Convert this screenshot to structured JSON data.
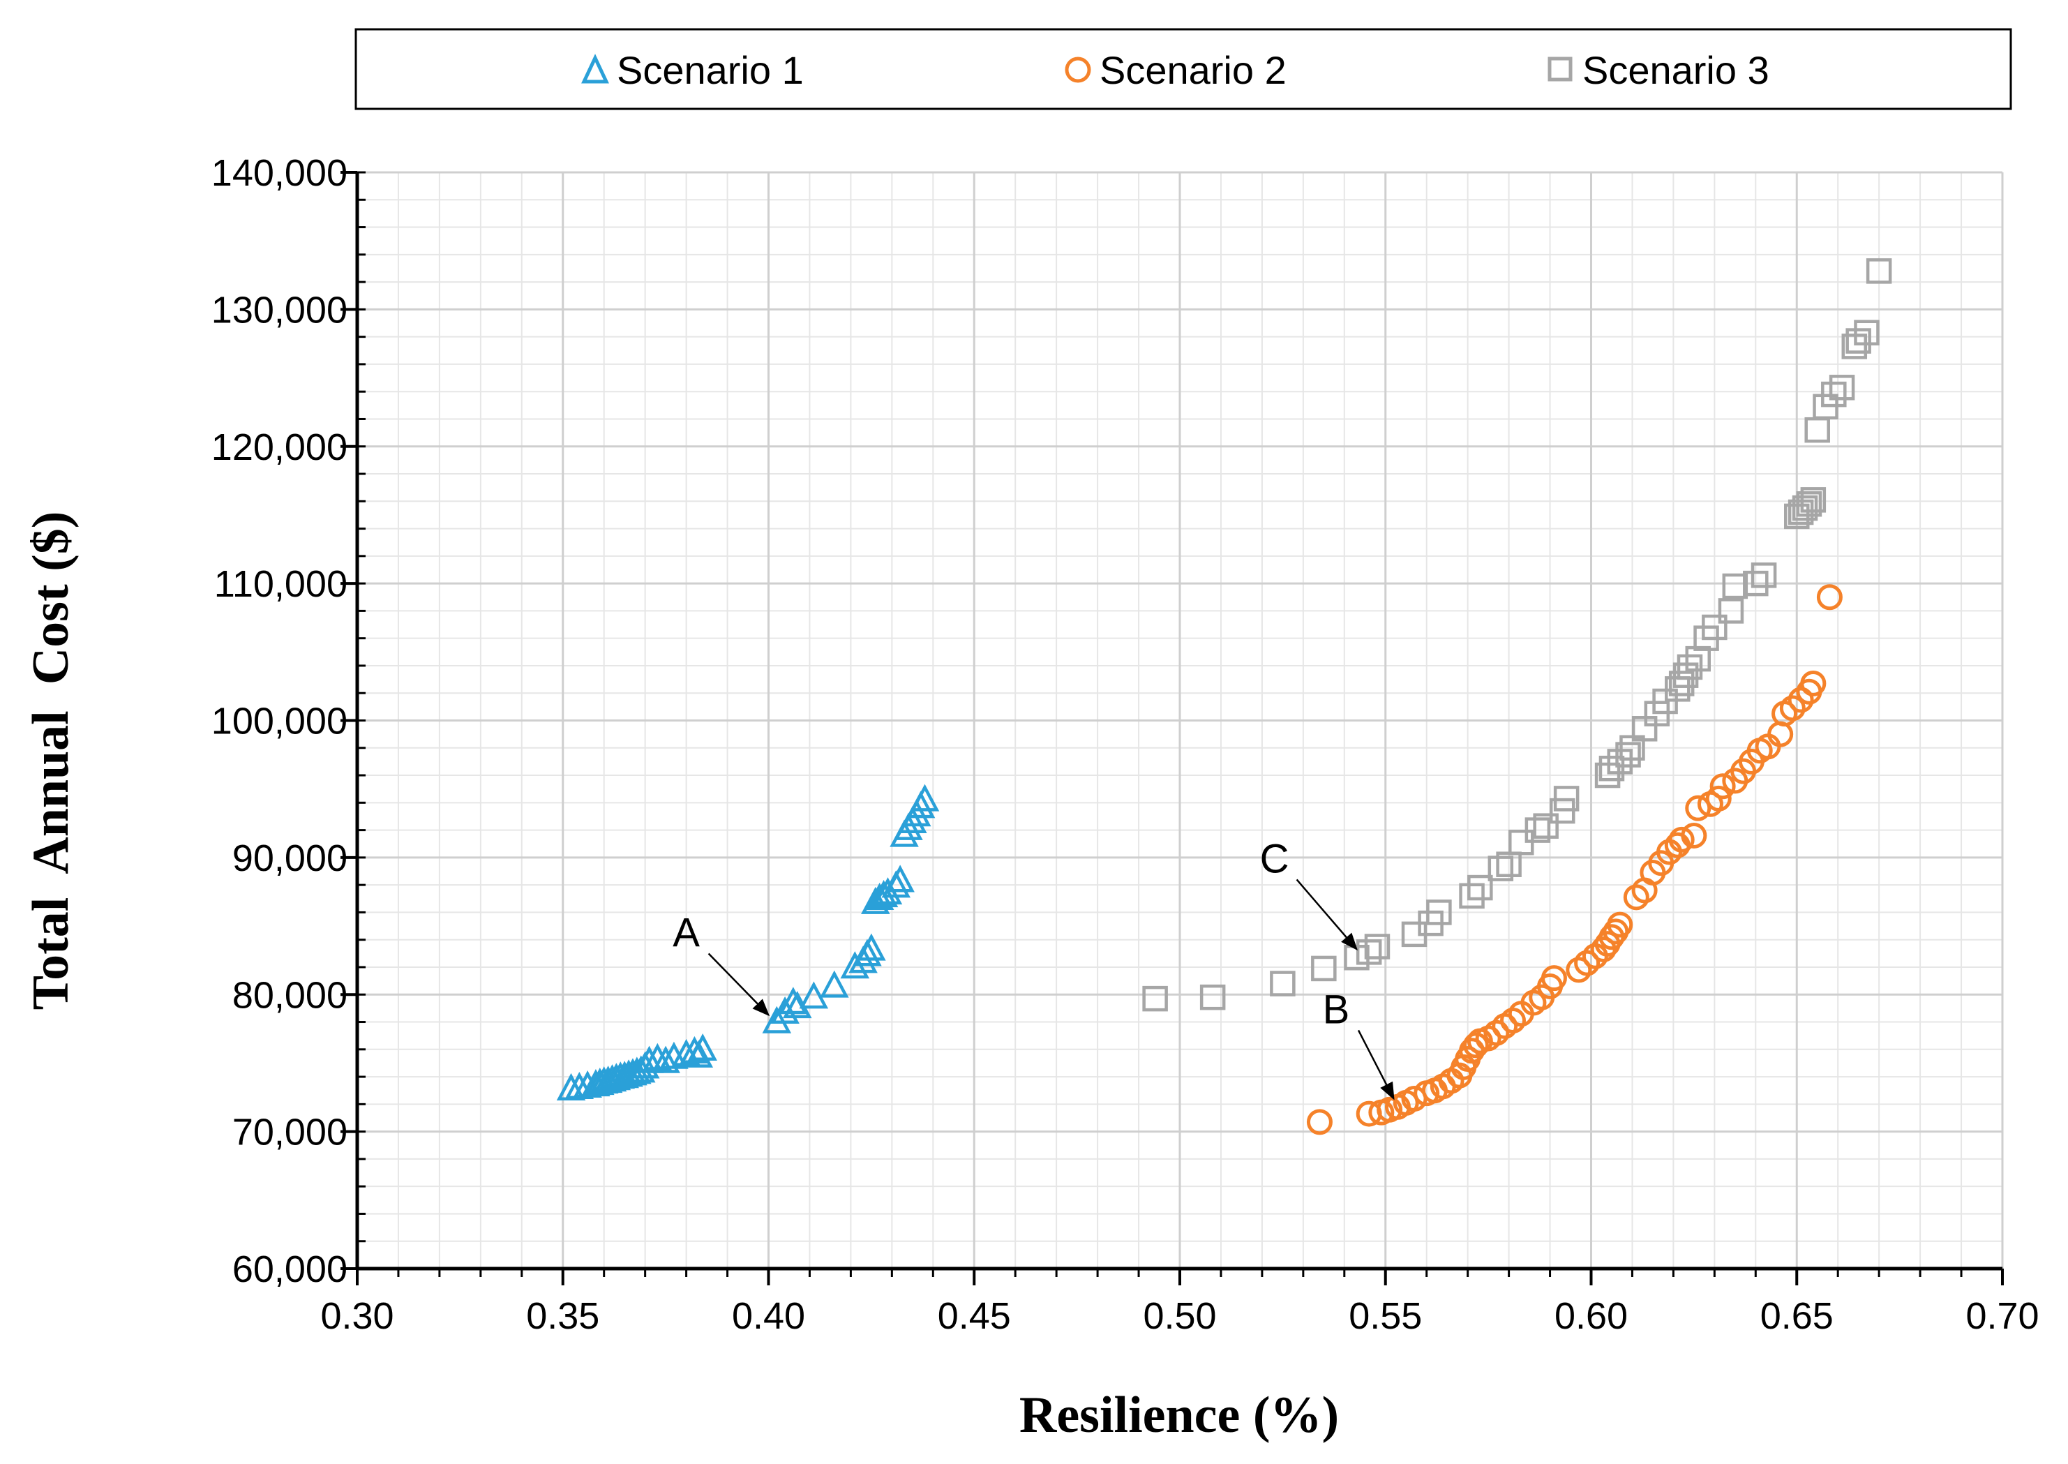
{
  "chart_data": {
    "type": "scatter",
    "title": "",
    "xlabel": "Resilience (%)",
    "ylabel": "Total  Annual  Cost ($)",
    "xlim": [
      0.3,
      0.7
    ],
    "ylim": [
      60000,
      140000
    ],
    "x_ticks": [
      "0.30",
      "0.35",
      "0.40",
      "0.45",
      "0.50",
      "0.55",
      "0.60",
      "0.65",
      "0.70"
    ],
    "y_ticks": [
      "60,000",
      "70,000",
      "80,000",
      "90,000",
      "100,000",
      "110,000",
      "120,000",
      "130,000",
      "140,000"
    ],
    "grid": true,
    "legend_position": "top",
    "series": [
      {
        "name": "Scenario 1",
        "marker": "triangle",
        "color": "#2aa0d8",
        "points": [
          [
            0.352,
            73000
          ],
          [
            0.354,
            73100
          ],
          [
            0.356,
            73200
          ],
          [
            0.358,
            73300
          ],
          [
            0.359,
            73400
          ],
          [
            0.36,
            73500
          ],
          [
            0.361,
            73550
          ],
          [
            0.362,
            73650
          ],
          [
            0.363,
            73750
          ],
          [
            0.364,
            73850
          ],
          [
            0.365,
            73900
          ],
          [
            0.366,
            74000
          ],
          [
            0.367,
            74100
          ],
          [
            0.368,
            74200
          ],
          [
            0.369,
            74300
          ],
          [
            0.37,
            74600
          ],
          [
            0.371,
            75000
          ],
          [
            0.373,
            75200
          ],
          [
            0.375,
            75000
          ],
          [
            0.377,
            75300
          ],
          [
            0.38,
            75500
          ],
          [
            0.382,
            75700
          ],
          [
            0.383,
            75400
          ],
          [
            0.384,
            75900
          ],
          [
            0.402,
            77900
          ],
          [
            0.404,
            78600
          ],
          [
            0.406,
            79300
          ],
          [
            0.407,
            79000
          ],
          [
            0.411,
            79700
          ],
          [
            0.416,
            80500
          ],
          [
            0.421,
            81900
          ],
          [
            0.423,
            82300
          ],
          [
            0.424,
            82800
          ],
          [
            0.425,
            83200
          ],
          [
            0.426,
            86600
          ],
          [
            0.427,
            86900
          ],
          [
            0.428,
            87100
          ],
          [
            0.429,
            87300
          ],
          [
            0.431,
            87800
          ],
          [
            0.432,
            88200
          ],
          [
            0.433,
            91500
          ],
          [
            0.434,
            92000
          ],
          [
            0.435,
            92500
          ],
          [
            0.436,
            93000
          ],
          [
            0.437,
            93600
          ],
          [
            0.438,
            94100
          ]
        ]
      },
      {
        "name": "Scenario 2",
        "marker": "circle",
        "color": "#f5822a",
        "points": [
          [
            0.534,
            70700
          ],
          [
            0.546,
            71300
          ],
          [
            0.549,
            71400
          ],
          [
            0.551,
            71600
          ],
          [
            0.553,
            71800
          ],
          [
            0.555,
            72100
          ],
          [
            0.557,
            72400
          ],
          [
            0.56,
            72800
          ],
          [
            0.562,
            73000
          ],
          [
            0.564,
            73300
          ],
          [
            0.566,
            73700
          ],
          [
            0.568,
            74100
          ],
          [
            0.569,
            74700
          ],
          [
            0.57,
            75300
          ],
          [
            0.571,
            75900
          ],
          [
            0.572,
            76300
          ],
          [
            0.573,
            76600
          ],
          [
            0.575,
            76800
          ],
          [
            0.577,
            77200
          ],
          [
            0.579,
            77700
          ],
          [
            0.581,
            78100
          ],
          [
            0.583,
            78600
          ],
          [
            0.586,
            79400
          ],
          [
            0.588,
            79800
          ],
          [
            0.59,
            80600
          ],
          [
            0.591,
            81200
          ],
          [
            0.597,
            81800
          ],
          [
            0.599,
            82300
          ],
          [
            0.601,
            82800
          ],
          [
            0.603,
            83300
          ],
          [
            0.604,
            83700
          ],
          [
            0.605,
            84200
          ],
          [
            0.606,
            84600
          ],
          [
            0.607,
            85100
          ],
          [
            0.611,
            87100
          ],
          [
            0.613,
            87600
          ],
          [
            0.615,
            88900
          ],
          [
            0.617,
            89600
          ],
          [
            0.619,
            90400
          ],
          [
            0.621,
            90900
          ],
          [
            0.622,
            91300
          ],
          [
            0.625,
            91600
          ],
          [
            0.626,
            93600
          ],
          [
            0.629,
            93900
          ],
          [
            0.631,
            94300
          ],
          [
            0.632,
            95200
          ],
          [
            0.635,
            95600
          ],
          [
            0.637,
            96300
          ],
          [
            0.639,
            97000
          ],
          [
            0.641,
            97800
          ],
          [
            0.643,
            98100
          ],
          [
            0.646,
            99000
          ],
          [
            0.647,
            100500
          ],
          [
            0.649,
            100900
          ],
          [
            0.651,
            101500
          ],
          [
            0.653,
            102100
          ],
          [
            0.654,
            102700
          ],
          [
            0.658,
            109000
          ]
        ]
      },
      {
        "name": "Scenario 3",
        "marker": "square",
        "color": "#a6a6a6",
        "points": [
          [
            0.494,
            79700
          ],
          [
            0.508,
            79800
          ],
          [
            0.525,
            80800
          ],
          [
            0.535,
            81900
          ],
          [
            0.543,
            82700
          ],
          [
            0.546,
            83100
          ],
          [
            0.548,
            83500
          ],
          [
            0.557,
            84400
          ],
          [
            0.561,
            85200
          ],
          [
            0.563,
            86000
          ],
          [
            0.571,
            87200
          ],
          [
            0.573,
            87800
          ],
          [
            0.578,
            89200
          ],
          [
            0.58,
            89500
          ],
          [
            0.583,
            91100
          ],
          [
            0.587,
            92000
          ],
          [
            0.589,
            92300
          ],
          [
            0.593,
            93400
          ],
          [
            0.594,
            94300
          ],
          [
            0.604,
            96000
          ],
          [
            0.605,
            96500
          ],
          [
            0.607,
            97000
          ],
          [
            0.609,
            97500
          ],
          [
            0.61,
            98000
          ],
          [
            0.613,
            99400
          ],
          [
            0.616,
            100500
          ],
          [
            0.618,
            101400
          ],
          [
            0.621,
            102300
          ],
          [
            0.622,
            102700
          ],
          [
            0.623,
            103300
          ],
          [
            0.624,
            103900
          ],
          [
            0.626,
            104500
          ],
          [
            0.628,
            106000
          ],
          [
            0.63,
            106800
          ],
          [
            0.634,
            108000
          ],
          [
            0.635,
            109800
          ],
          [
            0.64,
            110000
          ],
          [
            0.642,
            110600
          ],
          [
            0.65,
            114900
          ],
          [
            0.651,
            115200
          ],
          [
            0.652,
            115500
          ],
          [
            0.653,
            115800
          ],
          [
            0.654,
            116100
          ],
          [
            0.655,
            121200
          ],
          [
            0.657,
            122900
          ],
          [
            0.659,
            123800
          ],
          [
            0.661,
            124300
          ],
          [
            0.664,
            127300
          ],
          [
            0.665,
            127700
          ],
          [
            0.667,
            128300
          ],
          [
            0.67,
            132800
          ]
        ]
      }
    ],
    "annotations": [
      {
        "label": "A",
        "x": 0.401,
        "y": 77900,
        "text_x": 0.38,
        "text_y": 83500
      },
      {
        "label": "B",
        "x": 0.553,
        "y": 71800,
        "text_x": 0.538,
        "text_y": 77900
      },
      {
        "label": "C",
        "x": 0.544,
        "y": 82700,
        "text_x": 0.523,
        "text_y": 88900
      }
    ]
  }
}
